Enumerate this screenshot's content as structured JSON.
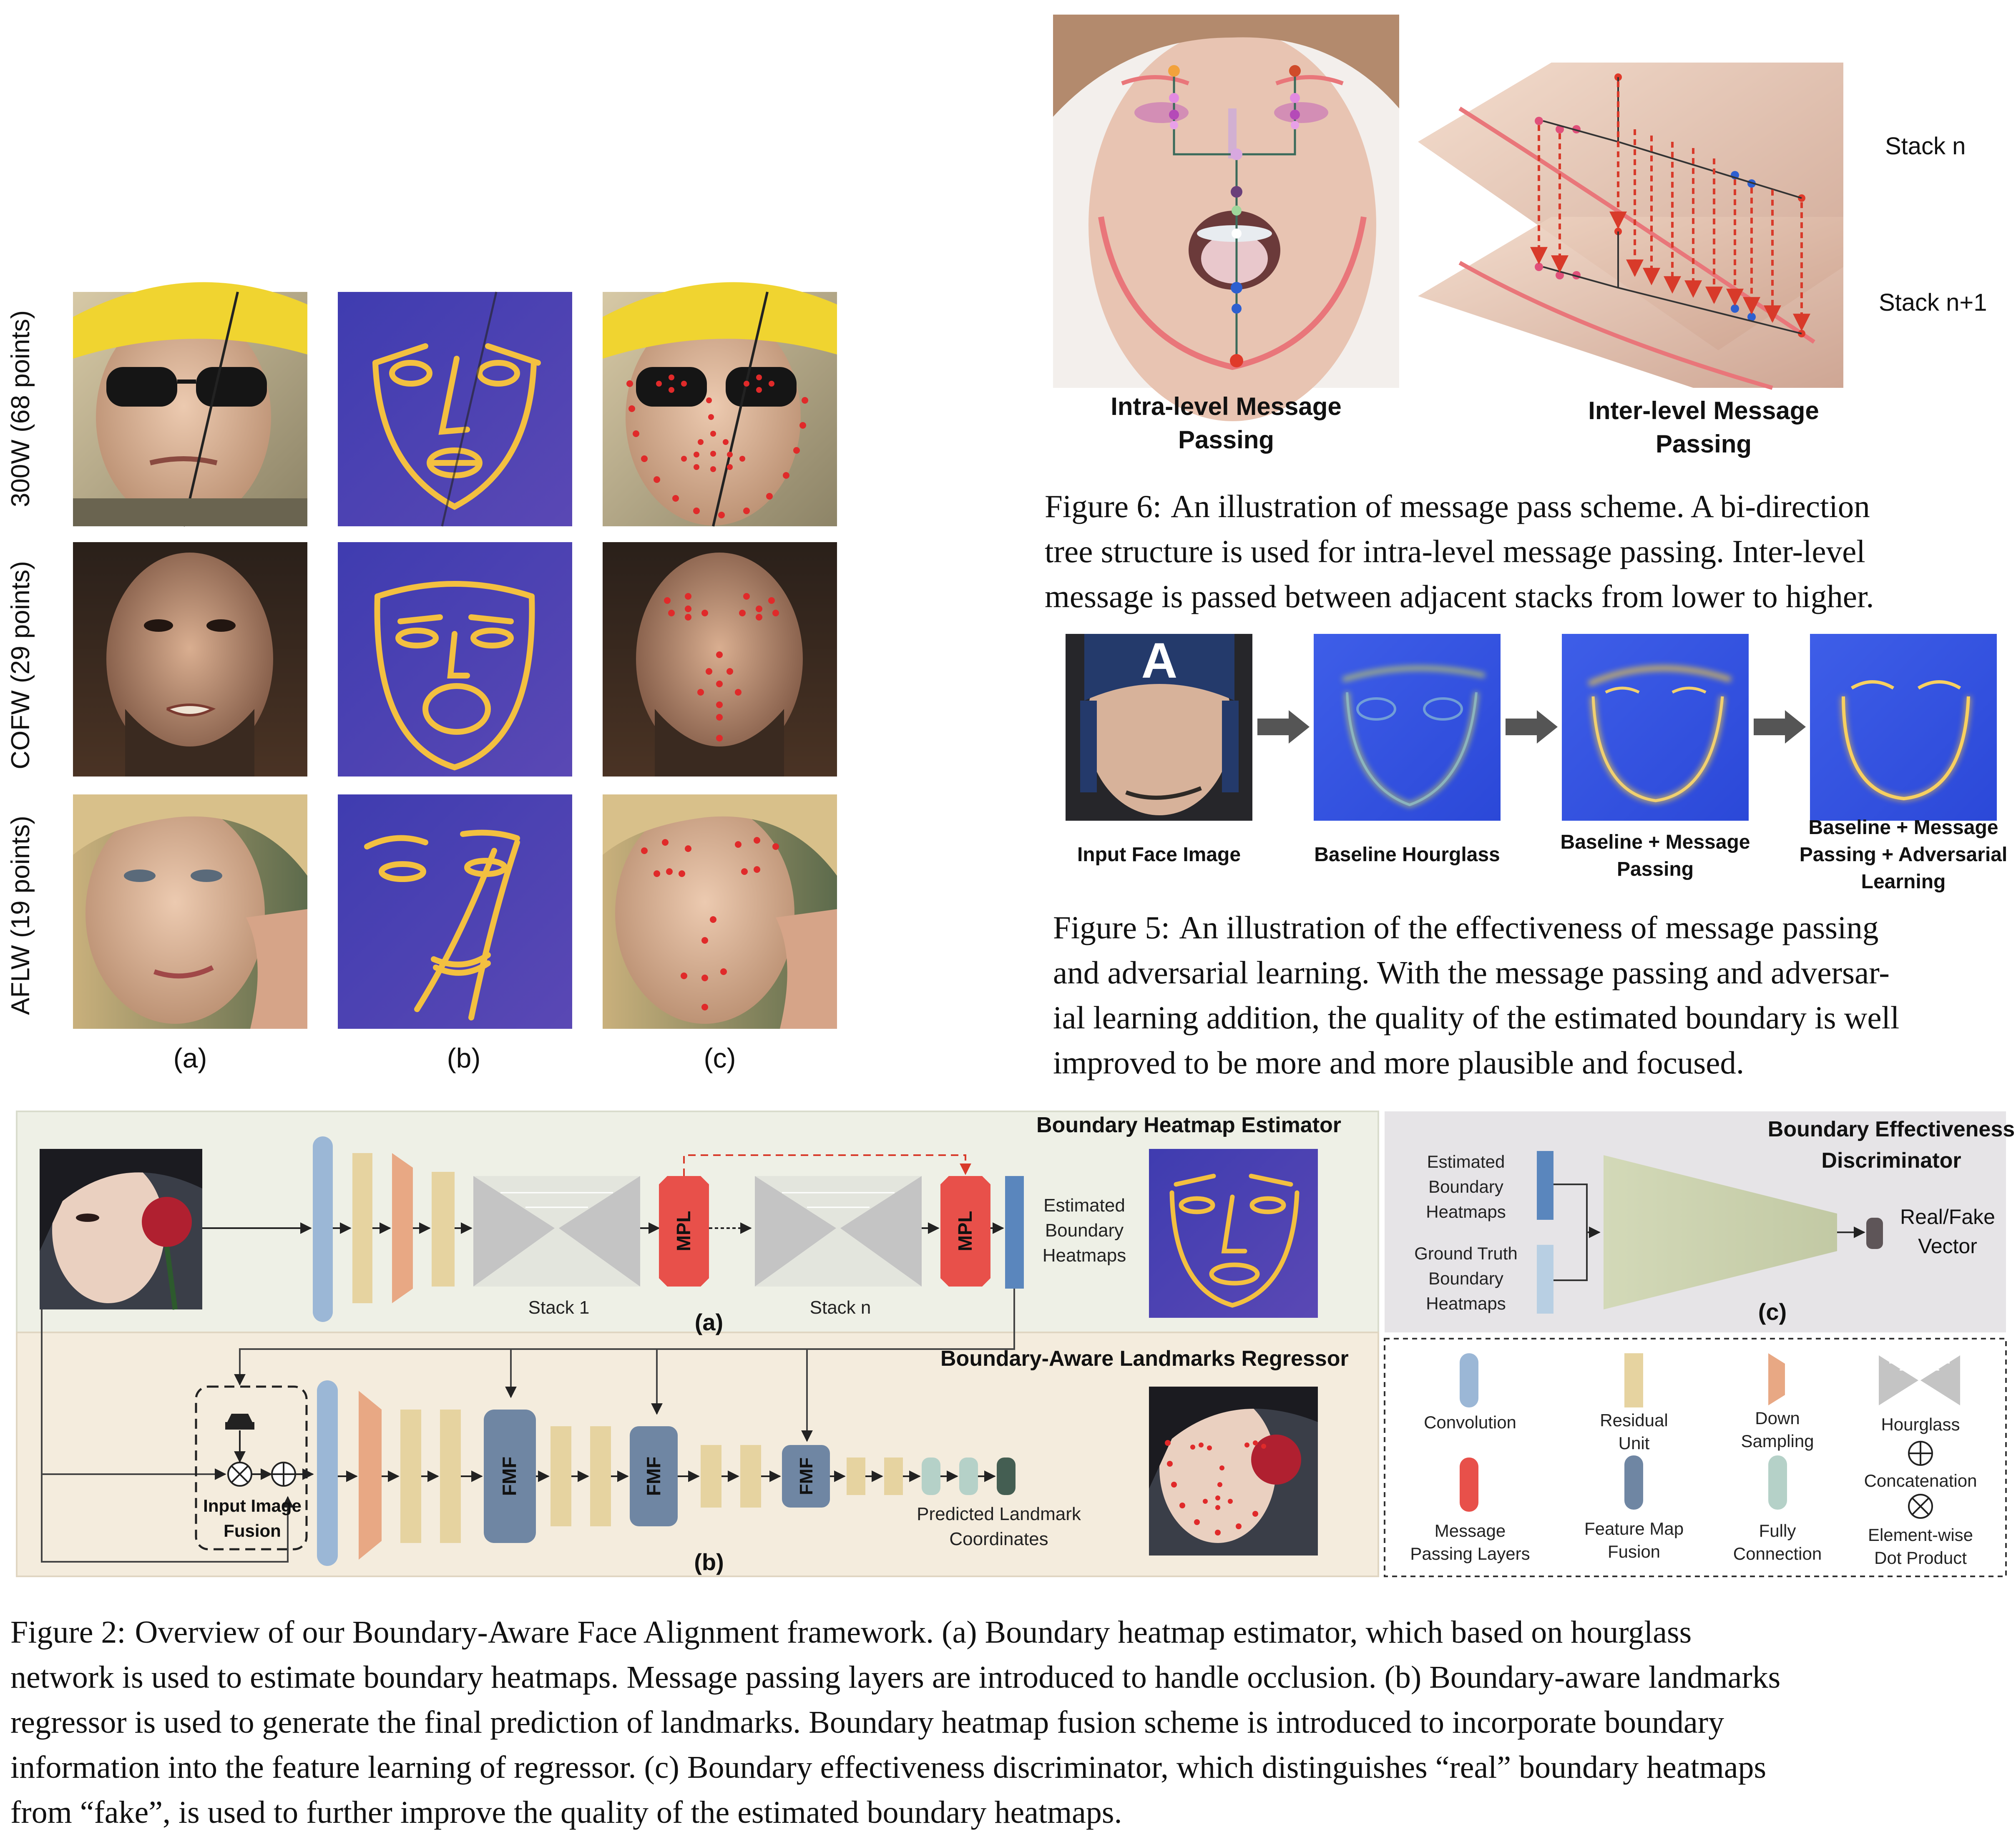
{
  "figure_grid": {
    "row_labels": [
      "300W (68 points)",
      "COFW (29 points)",
      "AFLW (19 points)"
    ],
    "column_labels": [
      "(a)",
      "(b)",
      "(c)"
    ]
  },
  "figure6": {
    "intra_title": [
      "Intra-level Message",
      "Passing"
    ],
    "inter_title": [
      "Inter-level Message",
      "Passing"
    ],
    "stack_n": "Stack n",
    "stack_n1": "Stack n+1",
    "caption_label": "Figure 6:",
    "caption_lines": [
      "An illustration of message pass scheme. A bi-direction",
      "tree structure is used for intra-level message passing.  Inter-level",
      "message is passed between adjacent stacks from lower to higher."
    ]
  },
  "figure5": {
    "panels": [
      {
        "label": "Input Face Image"
      },
      {
        "label": "Baseline Hourglass"
      },
      {
        "label": "Baseline + Message Passing",
        "lines": [
          "Baseline + Message",
          "Passing"
        ]
      },
      {
        "label": "Baseline + Message Passing + Adversarial Learning",
        "lines": [
          "Baseline + Message",
          "Passing + Adversarial",
          "Learning"
        ]
      }
    ],
    "caption_label": "Figure 5:",
    "caption_lines": [
      "An illustration of the effectiveness of message passing",
      "and adversarial learning. With the message passing and adversar-",
      "ial learning addition, the quality of the estimated boundary is well",
      "improved to be more and more plausible and focused."
    ]
  },
  "figure2": {
    "panel_a": {
      "title": "Boundary Heatmap Estimator",
      "mpl": "MPL",
      "stack1": "Stack 1",
      "stackn": "Stack n",
      "estimated": [
        "Estimated",
        "Boundary",
        "Heatmaps"
      ],
      "label": "(a)"
    },
    "panel_b": {
      "title": "Boundary-Aware Landmarks Regressor",
      "fmf": "FMF",
      "fusion_label": [
        "Input Image",
        "Fusion"
      ],
      "predicted": [
        "Predicted Landmark",
        "Coordinates"
      ],
      "label": "(b)"
    },
    "panel_c": {
      "title": [
        "Boundary Effectiveness",
        "Discriminator"
      ],
      "estimated": [
        "Estimated",
        "Boundary",
        "Heatmaps"
      ],
      "ground_truth": [
        "Ground Truth",
        "Boundary",
        "Heatmaps"
      ],
      "output": [
        "Real/Fake",
        "Vector"
      ],
      "label": "(c)"
    },
    "legend": [
      {
        "name": "convolution",
        "lines": [
          "Convolution"
        ]
      },
      {
        "name": "residual-unit",
        "lines": [
          "Residual",
          "Unit"
        ]
      },
      {
        "name": "down-sampling",
        "lines": [
          "Down",
          "Sampling"
        ]
      },
      {
        "name": "hourglass",
        "lines": [
          "Hourglass"
        ]
      },
      {
        "name": "message-passing-layers",
        "lines": [
          "Message",
          "Passing Layers"
        ]
      },
      {
        "name": "feature-map-fusion",
        "lines": [
          "Feature Map",
          "Fusion"
        ]
      },
      {
        "name": "fully-connection",
        "lines": [
          "Fully",
          "Connection"
        ]
      },
      {
        "name": "concatenation",
        "lines": [
          "Concatenation"
        ]
      },
      {
        "name": "element-wise-dot-product",
        "lines": [
          "Element-wise",
          "Dot Product"
        ]
      }
    ],
    "caption_label": "Figure 2:",
    "caption_lines": [
      "Overview of our Boundary-Aware Face Alignment framework.  (a) Boundary heatmap estimator, which based on hourglass",
      "network is used to estimate boundary heatmaps. Message passing layers are introduced to handle occlusion. (b) Boundary-aware landmarks",
      "regressor is used to generate the final prediction of landmarks. Boundary heatmap fusion scheme is introduced to incorporate boundary",
      "information into the feature learning of regressor. (c) Boundary effectiveness discriminator, which distinguishes “real” boundary heatmaps",
      "from “fake”, is used to further improve the quality of the estimated boundary heatmaps."
    ]
  },
  "colors": {
    "conv": "#9bb7d6",
    "residual": "#e6d3a0",
    "downsample": "#e8a884",
    "hourglass": "#c4c4c4",
    "mpl": "#e8504a",
    "fmf": "#6f86a3",
    "fc": "#b5d1c8",
    "panel_a_bg": "#eef0e6",
    "panel_b_bg": "#f4ecdd",
    "panel_c_bg": "#e6e4e7",
    "heatmap_bg": "#5548b8",
    "boundary_line": "#f3c040"
  }
}
